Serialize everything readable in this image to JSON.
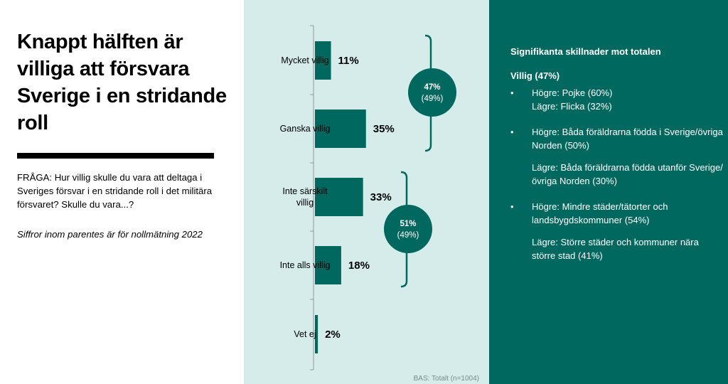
{
  "left": {
    "title": "Knappt hälften är villiga att försvara Sverige i en stridande roll",
    "question": "FRÅGA: Hur villig skulle du vara att deltaga i Sveriges försvar i en stridande roll i det militära försvaret? Skulle du vara...?",
    "note": "Siffror inom parentes är för nollmätning 2022"
  },
  "chart_data": {
    "type": "bar",
    "orientation": "horizontal",
    "categories": [
      "Mycket villig",
      "Ganska villig",
      "Inte särskilt villig",
      "Inte alls villig",
      "Vet ej"
    ],
    "category_lines": [
      [
        "Mycket villig"
      ],
      [
        "Ganska villig"
      ],
      [
        "Inte särskilt",
        "villig"
      ],
      [
        "Inte alls villig"
      ],
      [
        "Vet ej"
      ]
    ],
    "values": [
      11,
      35,
      33,
      18,
      2
    ],
    "value_labels": [
      "11%",
      "35%",
      "33%",
      "18%",
      "2%"
    ],
    "unit": "%",
    "xlim": [
      0,
      100
    ],
    "bar_color": "#00685f",
    "groups": [
      {
        "categories": [
          "Mycket villig",
          "Ganska villig"
        ],
        "label": "47%",
        "previous": "(49%)"
      },
      {
        "categories": [
          "Inte särskilt villig",
          "Inte alls villig"
        ],
        "label": "51%",
        "previous": "(49%)"
      }
    ],
    "base_note": "BAS: Totalt (n=1004)"
  },
  "right": {
    "heading": "Signifikanta skillnader mot totalen",
    "subheading": "Villig (47%)",
    "bullet": "•",
    "items": [
      {
        "lines": [
          "Högre: Pojke (60%)",
          "Lägre:  Flicka (32%)"
        ]
      },
      {
        "lines": [
          "Högre: Båda föräldrarna födda i Sverige/övriga Norden (50%)"
        ],
        "extra": "Lägre: Båda föräldrarna födda utanför Sverige/övriga Norden (30%)"
      },
      {
        "lines": [
          "Högre: Mindre städer/tätorter och landsbygdskommuner (54%)"
        ],
        "extra": "Lägre: Större städer och kommuner nära större stad (41%)"
      }
    ]
  },
  "colors": {
    "accent": "#00685f",
    "chart_background": "#d5ecea",
    "text": "#000000"
  }
}
